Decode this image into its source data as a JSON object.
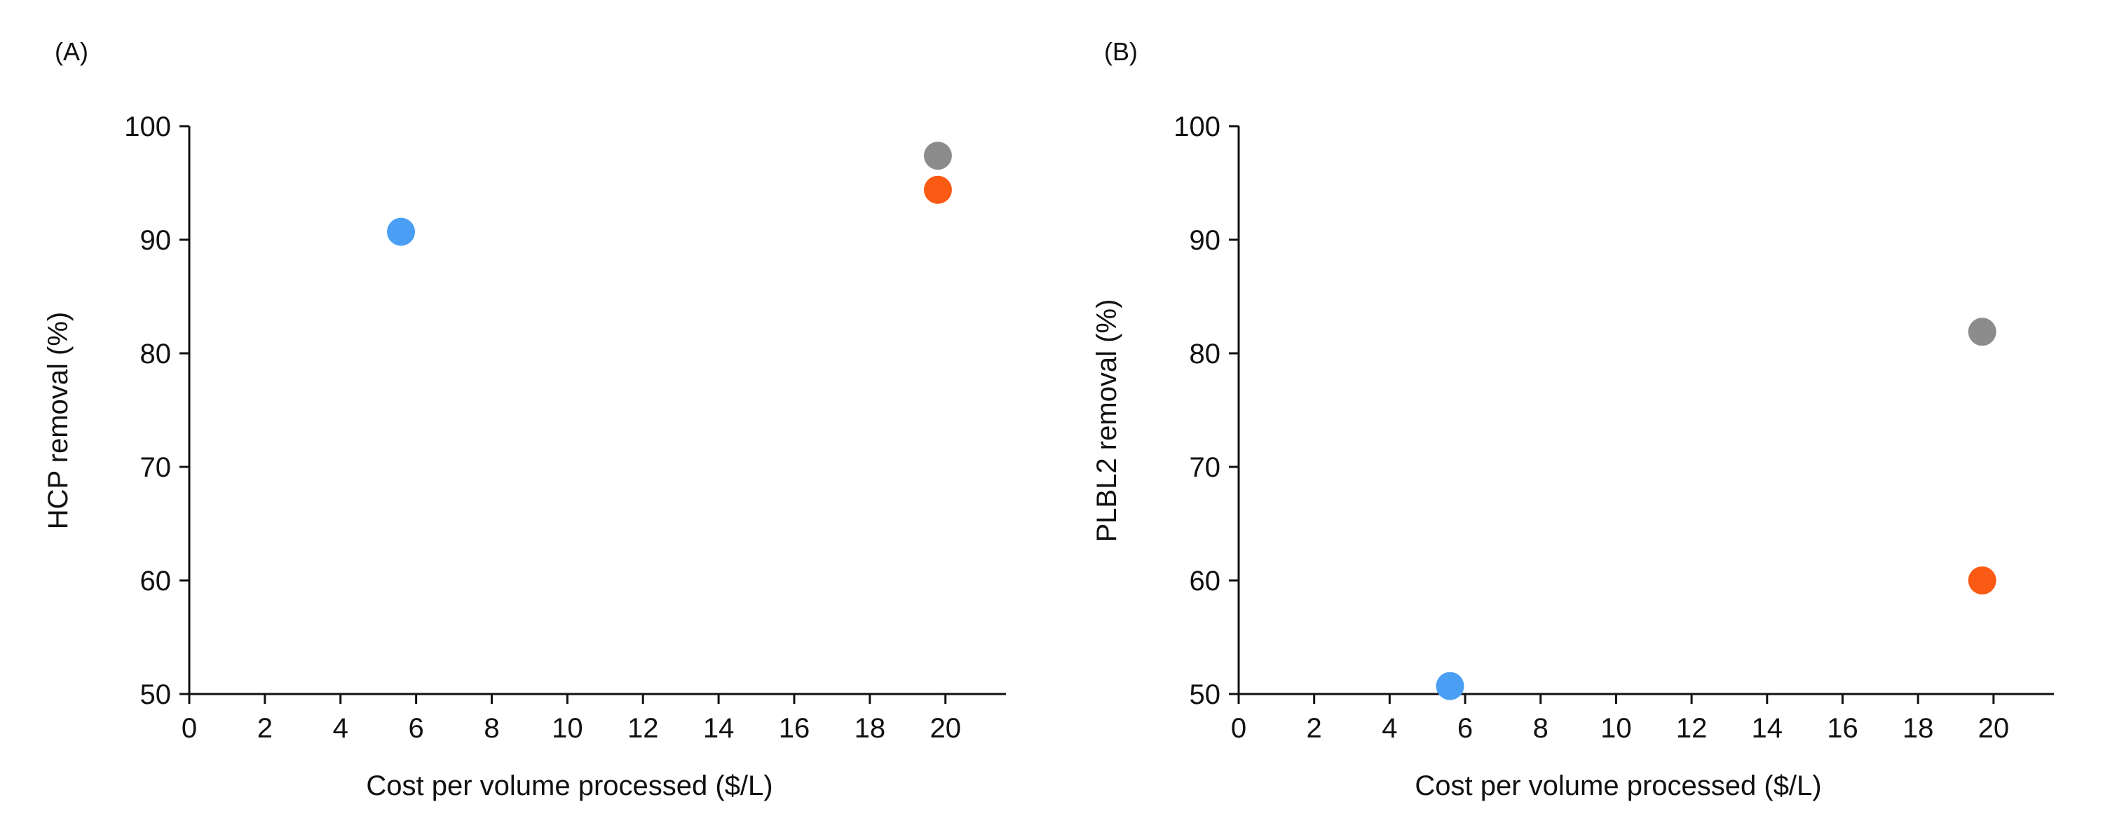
{
  "panels": [
    {
      "letter": "(A)"
    },
    {
      "letter": "(B)"
    }
  ],
  "chart_data": [
    {
      "type": "scatter",
      "panel": "(A)",
      "xlabel": "Cost per volume processed ($/L)",
      "ylabel": "HCP removal (%)",
      "xlim": [
        0,
        21.6
      ],
      "ylim": [
        50,
        100
      ],
      "xticks": [
        0,
        2,
        4,
        6,
        8,
        10,
        12,
        14,
        16,
        18,
        20
      ],
      "yticks": [
        50,
        60,
        70,
        80,
        90,
        100
      ],
      "grid": false,
      "points": [
        {
          "x": 5.6,
          "y": 90.7,
          "color": "#4a9ff5"
        },
        {
          "x": 19.8,
          "y": 97.4,
          "color": "#8c8c8c"
        },
        {
          "x": 19.8,
          "y": 94.4,
          "color": "#fa5a14"
        }
      ]
    },
    {
      "type": "scatter",
      "panel": "(B)",
      "xlabel": "Cost per volume processed ($/L)",
      "ylabel": "PLBL2 removal (%)",
      "xlim": [
        0,
        21.6
      ],
      "ylim": [
        50,
        100
      ],
      "xticks": [
        0,
        2,
        4,
        6,
        8,
        10,
        12,
        14,
        16,
        18,
        20
      ],
      "yticks": [
        50,
        60,
        70,
        80,
        90,
        100
      ],
      "grid": false,
      "points": [
        {
          "x": 5.6,
          "y": 50.7,
          "color": "#4a9ff5"
        },
        {
          "x": 19.7,
          "y": 81.9,
          "color": "#8c8c8c"
        },
        {
          "x": 19.7,
          "y": 60.0,
          "color": "#fa5a14"
        }
      ]
    }
  ]
}
